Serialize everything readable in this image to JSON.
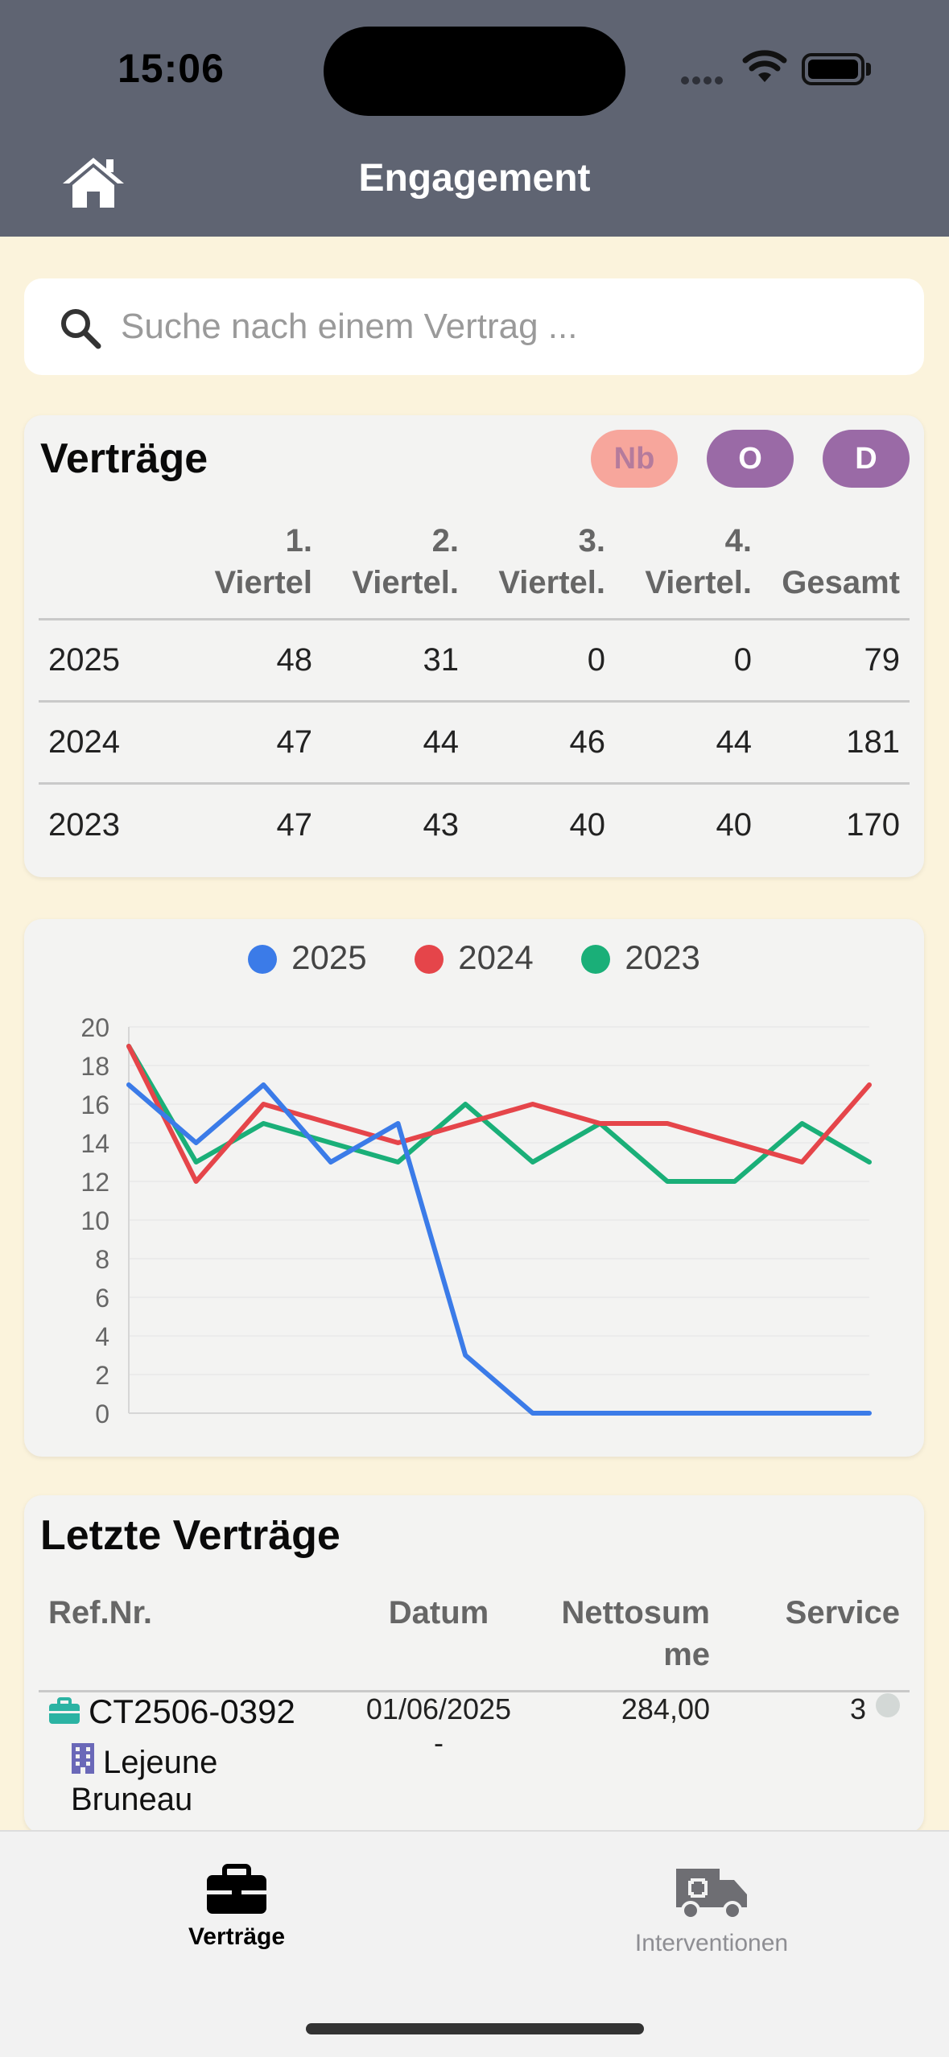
{
  "status_bar": {
    "time": "15:06"
  },
  "header": {
    "title": "Engagement",
    "home_icon": "home-icon"
  },
  "search": {
    "placeholder": "Suche nach einem Vertrag ..."
  },
  "contracts": {
    "title": "Verträge",
    "filters": [
      "Nb",
      "O",
      "D"
    ],
    "columns": [
      "",
      "1. Viertel",
      "2. Viertel.",
      "3. Viertel.",
      "4. Viertel.",
      "Gesamt"
    ],
    "rows": [
      {
        "year": "2025",
        "q1": "48",
        "q2": "31",
        "q3": "0",
        "q4": "0",
        "total": "79"
      },
      {
        "year": "2024",
        "q1": "47",
        "q2": "44",
        "q3": "46",
        "q4": "44",
        "total": "181"
      },
      {
        "year": "2023",
        "q1": "47",
        "q2": "43",
        "q3": "40",
        "q4": "40",
        "total": "170"
      }
    ]
  },
  "chart_data": {
    "type": "line",
    "x": [
      1,
      2,
      3,
      4,
      5,
      6,
      7,
      8,
      9,
      10,
      11,
      12
    ],
    "ylim": [
      0,
      20
    ],
    "yticks": [
      0,
      2,
      4,
      6,
      8,
      10,
      12,
      14,
      16,
      18,
      20
    ],
    "grid": true,
    "legend": "top",
    "series": [
      {
        "name": "2025",
        "color": "#3b7be8",
        "values": [
          17,
          14,
          17,
          13,
          15,
          3,
          0,
          0,
          0,
          0,
          0,
          0
        ]
      },
      {
        "name": "2024",
        "color": "#e5454a",
        "values": [
          19,
          12,
          16,
          15,
          14,
          15,
          16,
          15,
          15,
          14,
          13,
          17
        ]
      },
      {
        "name": "2023",
        "color": "#1aaf78",
        "values": [
          19,
          13,
          15,
          14,
          13,
          16,
          13,
          15,
          12,
          12,
          15,
          13
        ]
      }
    ]
  },
  "latest": {
    "title": "Letzte Verträge",
    "columns": {
      "ref": "Ref.Nr.",
      "date": "Datum",
      "net": "Nettosumme",
      "service": "Service"
    },
    "rows": [
      {
        "ref": "CT2506-0392",
        "client": "Lejeune Bruneau",
        "date": "01/06/2025",
        "date_sub": "-",
        "net": "284,00",
        "service": "3"
      }
    ]
  },
  "tabs": [
    {
      "label": "Verträge",
      "icon": "briefcase-icon",
      "active": true
    },
    {
      "label": "Interventionen",
      "icon": "ambulance-icon",
      "active": false
    }
  ]
}
